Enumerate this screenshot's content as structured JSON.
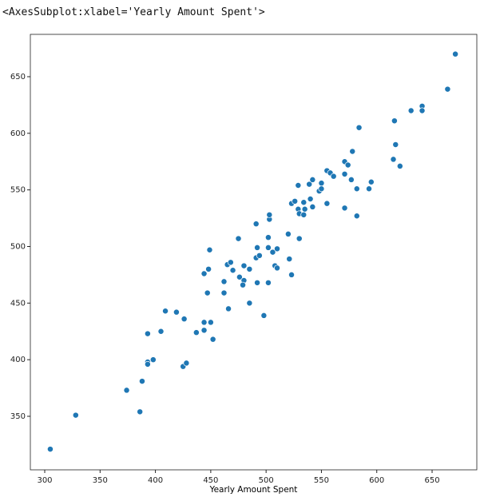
{
  "output_text": "<AxesSubplot:xlabel='Yearly Amount Spent'>",
  "chart_data": {
    "type": "scatter",
    "xlabel": "Yearly Amount Spent",
    "color": "#1f77b4",
    "xlim": [
      287,
      690.4
    ],
    "ylim": [
      302.7,
      687.4
    ],
    "xticks": [
      300,
      350,
      400,
      450,
      500,
      550,
      600,
      650
    ],
    "yticks": [
      350,
      400,
      450,
      500,
      550,
      600,
      650
    ],
    "grid": false,
    "x": [
      305,
      328,
      374,
      388,
      386,
      393,
      393,
      393,
      398,
      405,
      409,
      419,
      426,
      425,
      428,
      437,
      444,
      444,
      450,
      452,
      444,
      448,
      449,
      447,
      462,
      462,
      465,
      468,
      466,
      470,
      475,
      476,
      480,
      479,
      480,
      485,
      485,
      491,
      492,
      491,
      494,
      492,
      498,
      502,
      503,
      503,
      502,
      502,
      506,
      508,
      510,
      510,
      520,
      521,
      523,
      523,
      526,
      529,
      529,
      530,
      530,
      534,
      534,
      535,
      539,
      540,
      542,
      542,
      548,
      550,
      550,
      555,
      555,
      558,
      561,
      571,
      571,
      574,
      571,
      577,
      578,
      582,
      582,
      584,
      593,
      595,
      615,
      616,
      617,
      621,
      631,
      641,
      641,
      664,
      671
    ],
    "y": [
      321,
      351,
      373,
      381,
      354,
      423,
      398,
      396,
      400,
      425,
      443,
      442,
      436,
      394,
      397,
      424,
      433,
      426,
      433,
      418,
      476,
      480,
      497,
      459,
      459,
      469,
      484,
      486,
      445,
      479,
      507,
      473,
      470,
      466,
      483,
      480,
      450,
      520,
      499,
      490,
      492,
      468,
      439,
      508,
      524,
      528,
      499,
      468,
      495,
      483,
      481,
      498,
      511,
      489,
      475,
      538,
      540,
      554,
      533,
      529,
      507,
      539,
      528,
      533,
      555,
      542,
      559,
      535,
      549,
      551,
      556,
      538,
      567,
      565,
      562,
      575,
      564,
      572,
      534,
      559,
      584,
      551,
      527,
      605,
      551,
      557,
      577,
      611,
      590,
      571,
      620,
      624,
      620,
      639,
      670
    ]
  }
}
